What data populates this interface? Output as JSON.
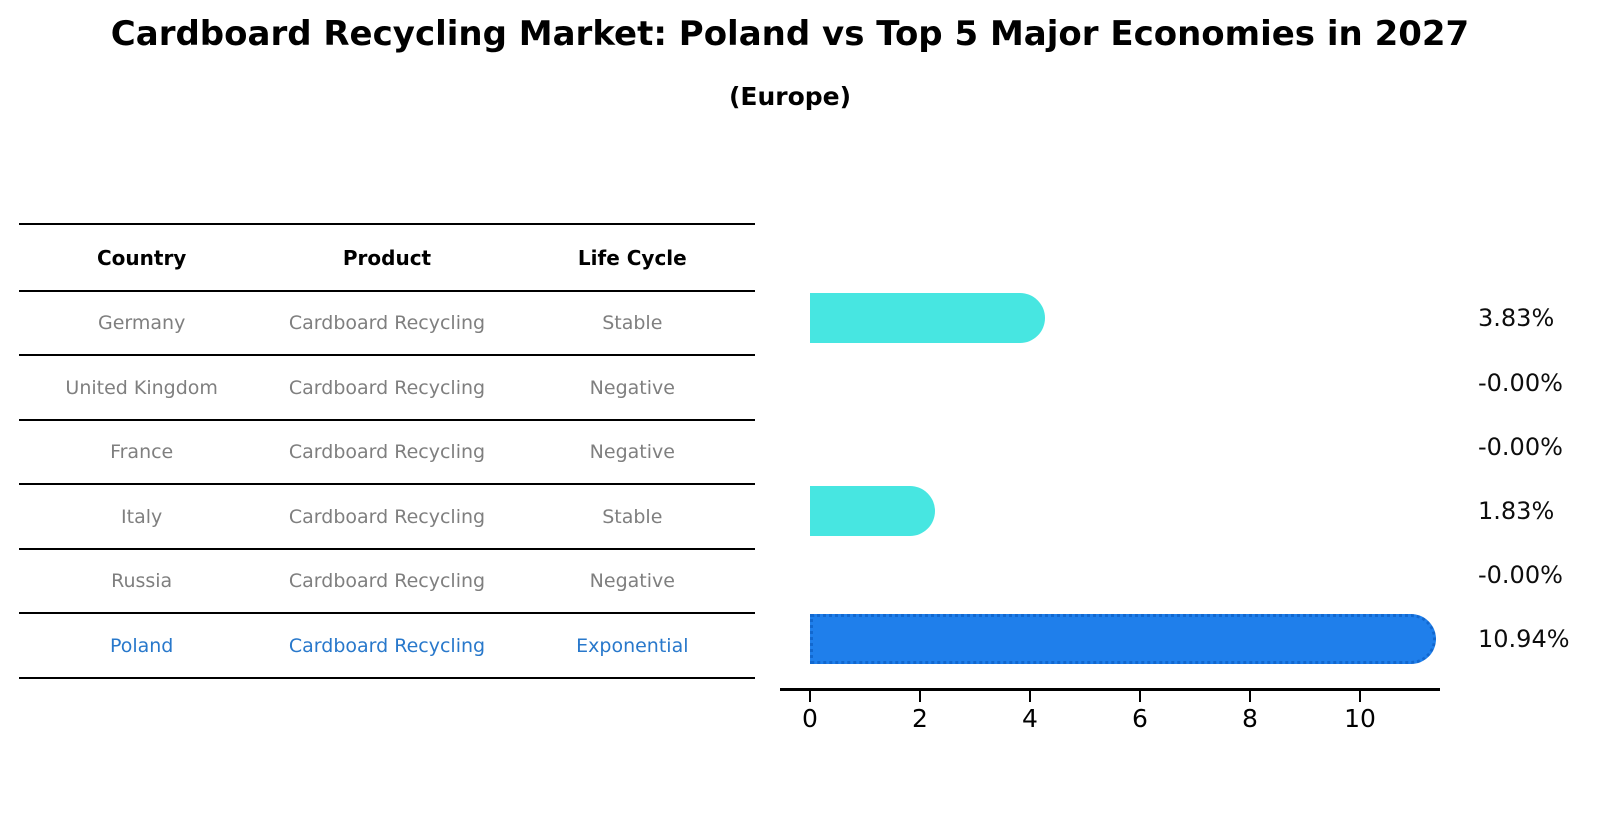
{
  "title": "Cardboard Recycling Market: Poland vs Top 5 Major Economies in 2027",
  "subtitle": "(Europe)",
  "table": {
    "headers": [
      "Country",
      "Product",
      "Life Cycle"
    ],
    "rows": [
      {
        "country": "Germany",
        "product": "Cardboard Recycling",
        "life_cycle": "Stable",
        "highlight": false
      },
      {
        "country": "United Kingdom",
        "product": "Cardboard Recycling",
        "life_cycle": "Negative",
        "highlight": false
      },
      {
        "country": "France",
        "product": "Cardboard Recycling",
        "life_cycle": "Negative",
        "highlight": false
      },
      {
        "country": "Italy",
        "product": "Cardboard Recycling",
        "life_cycle": "Stable",
        "highlight": false
      },
      {
        "country": "Russia",
        "product": "Cardboard Recycling",
        "life_cycle": "Negative",
        "highlight": false
      },
      {
        "country": "Poland",
        "product": "Cardboard Recycling",
        "life_cycle": "Exponential",
        "highlight": true
      }
    ]
  },
  "chart_data": {
    "type": "bar",
    "orientation": "horizontal",
    "title": "Cardboard Recycling Market: Poland vs Top 5 Major Economies in 2027 (Europe)",
    "categories": [
      "Germany",
      "United Kingdom",
      "France",
      "Italy",
      "Russia",
      "Poland"
    ],
    "values": [
      3.83,
      0.0,
      0.0,
      1.83,
      0.0,
      10.94
    ],
    "value_labels": [
      "3.83%",
      "-0.00%",
      "-0.00%",
      "1.83%",
      "-0.00%",
      "10.94%"
    ],
    "x_ticks": [
      "0",
      "2",
      "4",
      "6",
      "8",
      "10"
    ],
    "xlim": [
      0,
      11.5
    ],
    "grid": false,
    "legend": false,
    "bar_colors": [
      "#47E6E1",
      "#47E6E1",
      "#47E6E1",
      "#47E6E1",
      "#47E6E1",
      "#1F7FEB"
    ],
    "base_color": "#47E6E1",
    "highlight_color": "#1F7FEB",
    "highlight_border_color": "#1268CF",
    "highlight_text_color": "#2878CB"
  }
}
